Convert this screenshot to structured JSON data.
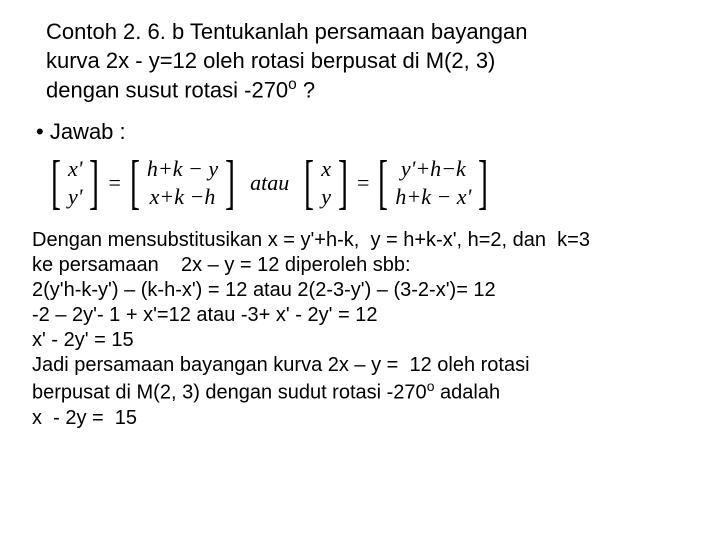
{
  "problem": {
    "line1": "Contoh 2. 6. b Tentukanlah persamaan bayangan",
    "line2": "kurva 2x - y=12 oleh rotasi berpusat di  M(2, 3)",
    "line3_pre": "dengan susut rotasi -270",
    "line3_sup": "o",
    "line3_post": "  ?"
  },
  "answer_bullet": "•  Jawab :",
  "matrix": {
    "left1": {
      "top": "x'",
      "bot": "y'"
    },
    "right1": {
      "top": "h+k − y",
      "bot": "x+k −h"
    },
    "atau": "atau",
    "left2": {
      "top": "x",
      "bot": "y"
    },
    "right2": {
      "top": "y'+h−k",
      "bot": "h+k − x'"
    }
  },
  "solution": {
    "l1": "Dengan mensubstitusikan x = y'+h-k,  y = h+k-x', h=2, dan  k=3",
    "l2": "ke persamaan    2x – y = 12 diperoleh sbb:",
    "l3": "2(y'h-k-y') – (k-h-x') = 12 atau 2(2-3-y') – (3-2-x')= 12",
    "l4": "-2 – 2y'- 1 + x'=12 atau -3+ x' - 2y' = 12",
    "l5": "x' - 2y' = 15",
    "l6": "Jadi persamaan bayangan kurva 2x – y =  12 oleh rotasi",
    "l7_pre": "berpusat di M(2, 3) dengan sudut rotasi -270",
    "l7_sup": "o",
    "l7_post": " adalah",
    "l8": "x  - 2y =  15"
  }
}
